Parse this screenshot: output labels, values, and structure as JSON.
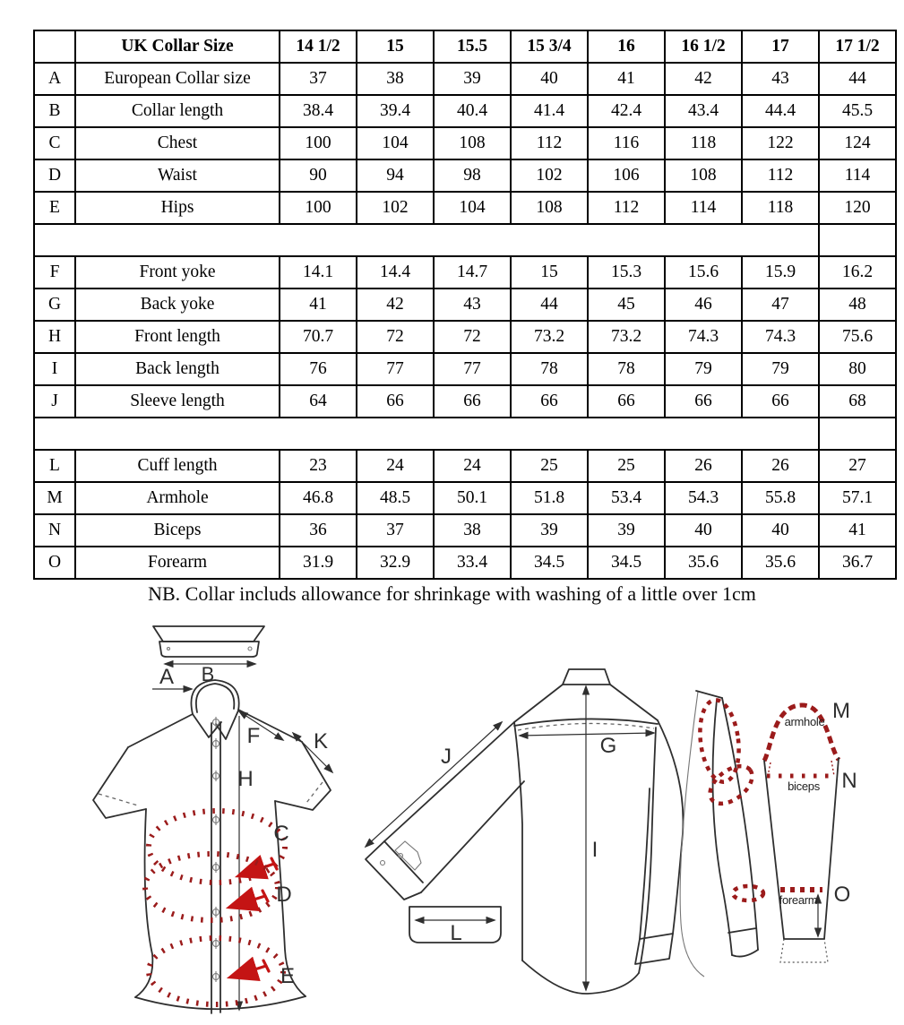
{
  "table": {
    "header": {
      "corner": "",
      "label": "UK Collar Size",
      "sizes": [
        "14 1/2",
        "15",
        "15.5",
        "15 3/4",
        "16",
        "16 1/2",
        "17",
        "17 1/2"
      ]
    },
    "rows": [
      {
        "key": "A",
        "label": "European Collar size",
        "values": [
          "37",
          "38",
          "39",
          "40",
          "41",
          "42",
          "43",
          "44"
        ]
      },
      {
        "key": "B",
        "label": "Collar length",
        "values": [
          "38.4",
          "39.4",
          "40.4",
          "41.4",
          "42.4",
          "43.4",
          "44.4",
          "45.5"
        ]
      },
      {
        "key": "C",
        "label": "Chest",
        "values": [
          "100",
          "104",
          "108",
          "112",
          "116",
          "118",
          "122",
          "124"
        ]
      },
      {
        "key": "D",
        "label": "Waist",
        "values": [
          "90",
          "94",
          "98",
          "102",
          "106",
          "108",
          "112",
          "114"
        ]
      },
      {
        "key": "E",
        "label": "Hips",
        "values": [
          "100",
          "102",
          "104",
          "108",
          "112",
          "114",
          "118",
          "120"
        ]
      },
      {
        "spacer": true
      },
      {
        "key": "F",
        "label": "Front yoke",
        "values": [
          "14.1",
          "14.4",
          "14.7",
          "15",
          "15.3",
          "15.6",
          "15.9",
          "16.2"
        ]
      },
      {
        "key": "G",
        "label": "Back yoke",
        "values": [
          "41",
          "42",
          "43",
          "44",
          "45",
          "46",
          "47",
          "48"
        ]
      },
      {
        "key": "H",
        "label": "Front length",
        "values": [
          "70.7",
          "72",
          "72",
          "73.2",
          "73.2",
          "74.3",
          "74.3",
          "75.6"
        ]
      },
      {
        "key": "I",
        "label": "Back length",
        "values": [
          "76",
          "77",
          "77",
          "78",
          "78",
          "79",
          "79",
          "80"
        ]
      },
      {
        "key": "J",
        "label": "Sleeve length",
        "values": [
          "64",
          "66",
          "66",
          "66",
          "66",
          "66",
          "66",
          "68"
        ]
      },
      {
        "spacer": true
      },
      {
        "key": "L",
        "label": "Cuff length",
        "values": [
          "23",
          "24",
          "24",
          "25",
          "25",
          "26",
          "26",
          "27"
        ]
      },
      {
        "key": "M",
        "label": "Armhole",
        "values": [
          "46.8",
          "48.5",
          "50.1",
          "51.8",
          "53.4",
          "54.3",
          "55.8",
          "57.1"
        ]
      },
      {
        "key": "N",
        "label": "Biceps",
        "values": [
          "36",
          "37",
          "38",
          "39",
          "39",
          "40",
          "40",
          "41"
        ]
      },
      {
        "key": "O",
        "label": "Forearm",
        "values": [
          "31.9",
          "32.9",
          "33.4",
          "34.5",
          "34.5",
          "35.6",
          "35.6",
          "36.7"
        ]
      }
    ]
  },
  "note": "NB. Collar includs allowance for shrinkage with washing of a little over 1cm",
  "diagrams": {
    "front": {
      "labels": {
        "A": "A",
        "B": "B",
        "C": "C",
        "D": "D",
        "E": "E",
        "F": "F",
        "H": "H",
        "K": "K"
      }
    },
    "back": {
      "labels": {
        "G": "G",
        "I": "I",
        "J": "J",
        "L": "L"
      }
    },
    "sleeve": {
      "labels": {
        "M": "M",
        "N": "N",
        "O": "O"
      },
      "annotations": {
        "armhole": "armhole",
        "biceps": "biceps",
        "forearm": "forearm"
      }
    }
  },
  "colors": {
    "dashed_red": "#9b1b1b",
    "arrow_red": "#c41414",
    "line": "#2f2f2f"
  }
}
